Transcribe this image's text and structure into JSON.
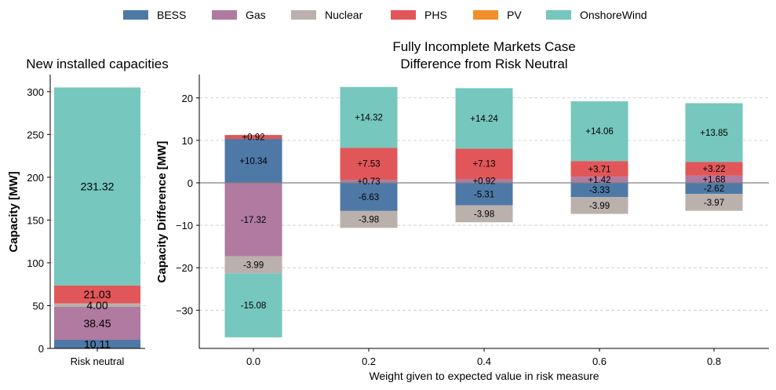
{
  "legend": {
    "items": [
      {
        "label": "BESS",
        "color": "#4e79a7"
      },
      {
        "label": "Gas",
        "color": "#b07aa1"
      },
      {
        "label": "Nuclear",
        "color": "#bab0ac"
      },
      {
        "label": "PHS",
        "color": "#e15759"
      },
      {
        "label": "PV",
        "color": "#f28e2b"
      },
      {
        "label": "OnshoreWind",
        "color": "#76c7bd"
      }
    ],
    "placement": "top-center"
  },
  "chart_data": [
    {
      "type": "bar",
      "stacked": true,
      "title": "New installed capacities",
      "ylabel": "Capacity [MW]",
      "xlabel": "",
      "categories": [
        "Risk neutral"
      ],
      "ylim": [
        0,
        320
      ],
      "yticks": [
        0,
        50,
        100,
        150,
        200,
        250,
        300
      ],
      "grid": "y-dashed",
      "series": [
        {
          "name": "BESS",
          "values": [
            10.11
          ],
          "labels": [
            "10.11"
          ]
        },
        {
          "name": "Gas",
          "values": [
            38.45
          ],
          "labels": [
            "38.45"
          ]
        },
        {
          "name": "Nuclear",
          "values": [
            4.0
          ],
          "labels": [
            "4.00"
          ]
        },
        {
          "name": "PHS",
          "values": [
            21.03
          ],
          "labels": [
            "21.03"
          ]
        },
        {
          "name": "OnshoreWind",
          "values": [
            231.32
          ],
          "labels": [
            "231.32"
          ]
        }
      ]
    },
    {
      "type": "bar",
      "stacked": true,
      "title": "Fully Incomplete Markets Case",
      "subtitle": "Difference from Risk Neutral",
      "xlabel": "Weight given to expected value in risk measure",
      "ylabel": "Capacity Difference [MW]",
      "categories": [
        "0.0",
        "0.2",
        "0.4",
        "0.6",
        "0.8"
      ],
      "ylim": [
        -39,
        25.5
      ],
      "yticks": [
        -30,
        -20,
        -10,
        0,
        10,
        20
      ],
      "ytick_labels": [
        "−30",
        "−20",
        "−10",
        "0",
        "10",
        "20"
      ],
      "grid": "y-dashed",
      "zero_line": true,
      "series": [
        {
          "name": "BESS",
          "values": [
            10.34,
            -6.63,
            -5.31,
            -3.33,
            -2.62
          ],
          "labels": [
            "+10.34",
            "-6.63",
            "-5.31",
            "-3.33",
            "-2.62"
          ]
        },
        {
          "name": "Gas",
          "values": [
            -17.32,
            0.73,
            0.92,
            1.42,
            1.68
          ],
          "labels": [
            "-17.32",
            "+0.73",
            "+0.92",
            "+1.42",
            "+1.68"
          ]
        },
        {
          "name": "Nuclear",
          "values": [
            -3.99,
            -3.98,
            -3.98,
            -3.99,
            -3.97
          ],
          "labels": [
            "-3.99",
            "-3.98",
            "-3.98",
            "-3.99",
            "-3.97"
          ]
        },
        {
          "name": "PHS",
          "values": [
            0.92,
            7.53,
            7.13,
            3.71,
            3.22
          ],
          "labels": [
            "+0.92",
            "+7.53",
            "+7.13",
            "+3.71",
            "+3.22"
          ]
        },
        {
          "name": "OnshoreWind",
          "values": [
            -15.08,
            14.32,
            14.24,
            14.06,
            13.85
          ],
          "labels": [
            "-15.08",
            "+14.32",
            "+14.24",
            "+14.06",
            "+13.85"
          ]
        }
      ]
    }
  ]
}
